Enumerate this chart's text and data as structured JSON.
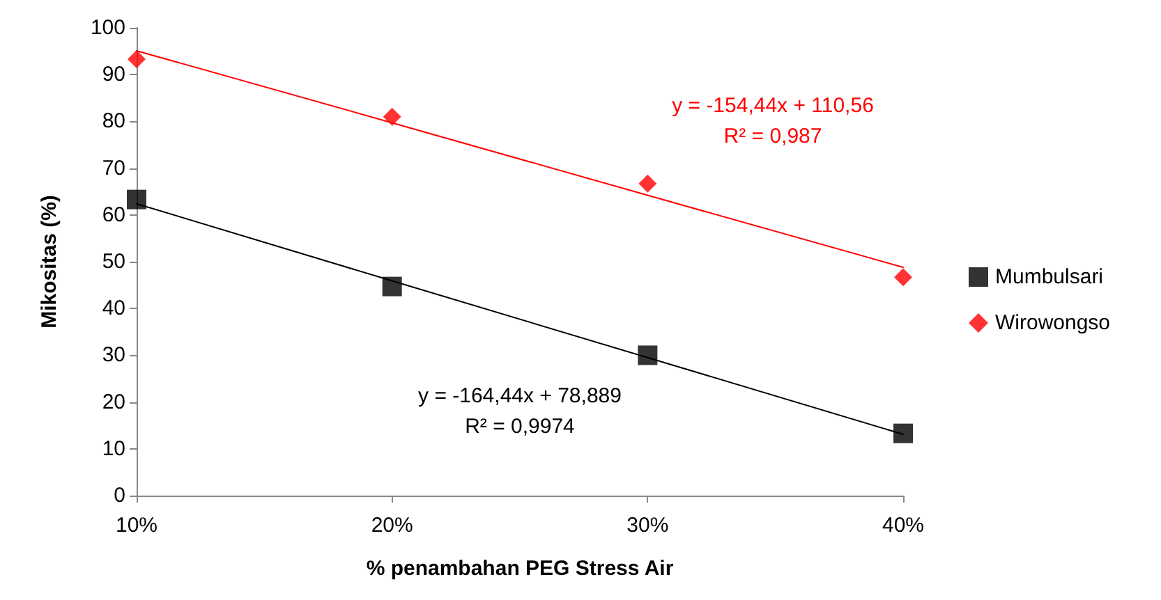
{
  "chart_data": {
    "type": "scatter",
    "xlabel": "% penambahan PEG Stress Air",
    "ylabel": "Mikositas (%)",
    "x": [
      0.1,
      0.2,
      0.3,
      0.4
    ],
    "xlim": [
      0.1,
      0.4
    ],
    "xticks": [
      {
        "value": 0.1,
        "label": "10%"
      },
      {
        "value": 0.2,
        "label": "20%"
      },
      {
        "value": 0.3,
        "label": "30%"
      },
      {
        "value": 0.4,
        "label": "40%"
      }
    ],
    "ylim": [
      0,
      100
    ],
    "yticks": [
      0,
      10,
      20,
      30,
      40,
      50,
      60,
      70,
      80,
      90,
      100
    ],
    "grid": false,
    "legend": "right",
    "series": [
      {
        "name": "Mumbulsari",
        "color": "#000000",
        "marker": "square",
        "values": [
          63.3,
          44.7,
          30.0,
          13.3
        ]
      },
      {
        "name": "Wirowongso",
        "color": "#ff0000",
        "marker": "diamond",
        "values": [
          93.3,
          81.0,
          66.7,
          46.7
        ]
      },
      {
        "type": "line",
        "color": "#000000",
        "marker": "none",
        "values": [
          62.4,
          45.9,
          29.5,
          13.1
        ]
      },
      {
        "type": "line",
        "color": "#ff0000",
        "marker": "none",
        "values": [
          95.1,
          79.7,
          64.2,
          48.8
        ]
      }
    ],
    "annotations": [
      "y = -164,44x + 78,889\nR² = 0,9974",
      "y = -154,44x + 110,56\nR² = 0,987"
    ]
  }
}
